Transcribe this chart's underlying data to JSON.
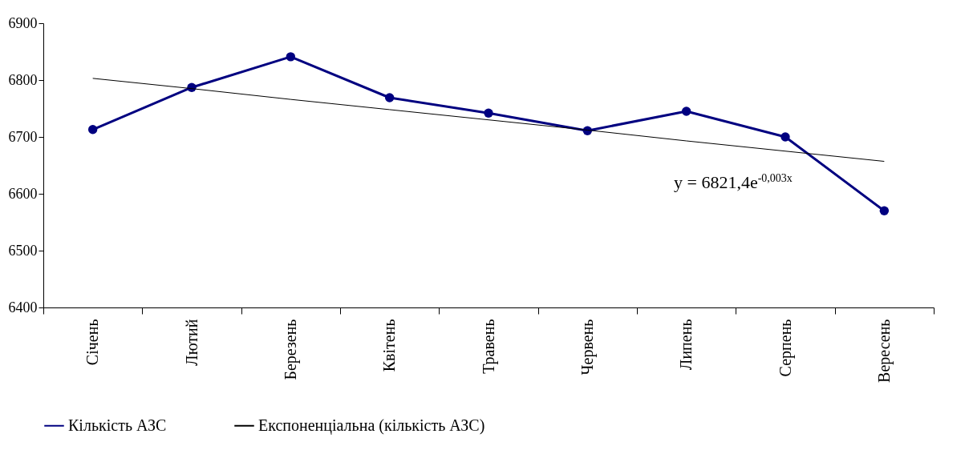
{
  "chart_data": {
    "type": "line",
    "categories": [
      "Січень",
      "Лютий",
      "Березень",
      "Квітень",
      "Травень",
      "Червень",
      "Липень",
      "Серпень",
      "Вересень"
    ],
    "series": [
      {
        "name": "Кількість АЗС",
        "color": "#000080",
        "values": [
          6713,
          6787,
          6841,
          6769,
          6742,
          6711,
          6745,
          6700,
          6570
        ],
        "marker": "circle"
      },
      {
        "name": "Експоненціальна (кількість АЗС)",
        "color": "#000000",
        "values": [
          6803,
          6785,
          6766,
          6748,
          6730,
          6712,
          6693,
          6675,
          6657
        ],
        "marker": "none"
      }
    ],
    "ylim": [
      6400,
      6900
    ],
    "yticks": [
      6400,
      6500,
      6600,
      6700,
      6800,
      6900
    ],
    "grid": false,
    "legend": "bottom",
    "annotations": [
      "y = 6821,4e$^{-0,003x}$"
    ]
  }
}
